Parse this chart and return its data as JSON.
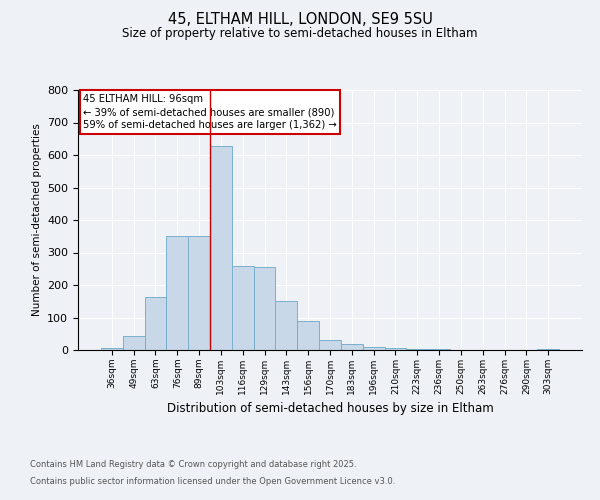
{
  "title1": "45, ELTHAM HILL, LONDON, SE9 5SU",
  "title2": "Size of property relative to semi-detached houses in Eltham",
  "xlabel": "Distribution of semi-detached houses by size in Eltham",
  "ylabel": "Number of semi-detached properties",
  "categories": [
    "36sqm",
    "49sqm",
    "63sqm",
    "76sqm",
    "89sqm",
    "103sqm",
    "116sqm",
    "129sqm",
    "143sqm",
    "156sqm",
    "170sqm",
    "183sqm",
    "196sqm",
    "210sqm",
    "223sqm",
    "236sqm",
    "250sqm",
    "263sqm",
    "276sqm",
    "290sqm",
    "303sqm"
  ],
  "values": [
    5,
    42,
    163,
    350,
    350,
    628,
    258,
    255,
    150,
    90,
    30,
    20,
    10,
    5,
    3,
    2,
    1,
    0,
    1,
    0,
    2
  ],
  "bar_color": "#c8d8e8",
  "bar_edgecolor": "#7ab0cc",
  "marker_bin_index": 4.5,
  "annotation_title": "45 ELTHAM HILL: 96sqm",
  "annotation_line1": "← 39% of semi-detached houses are smaller (890)",
  "annotation_line2": "59% of semi-detached houses are larger (1,362) →",
  "annotation_color": "#cc0000",
  "ylim": [
    0,
    800
  ],
  "yticks": [
    0,
    100,
    200,
    300,
    400,
    500,
    600,
    700,
    800
  ],
  "footer1": "Contains HM Land Registry data © Crown copyright and database right 2025.",
  "footer2": "Contains public sector information licensed under the Open Government Licence v3.0.",
  "bg_color": "#eef2f7",
  "fig_color": "#eef2f7"
}
